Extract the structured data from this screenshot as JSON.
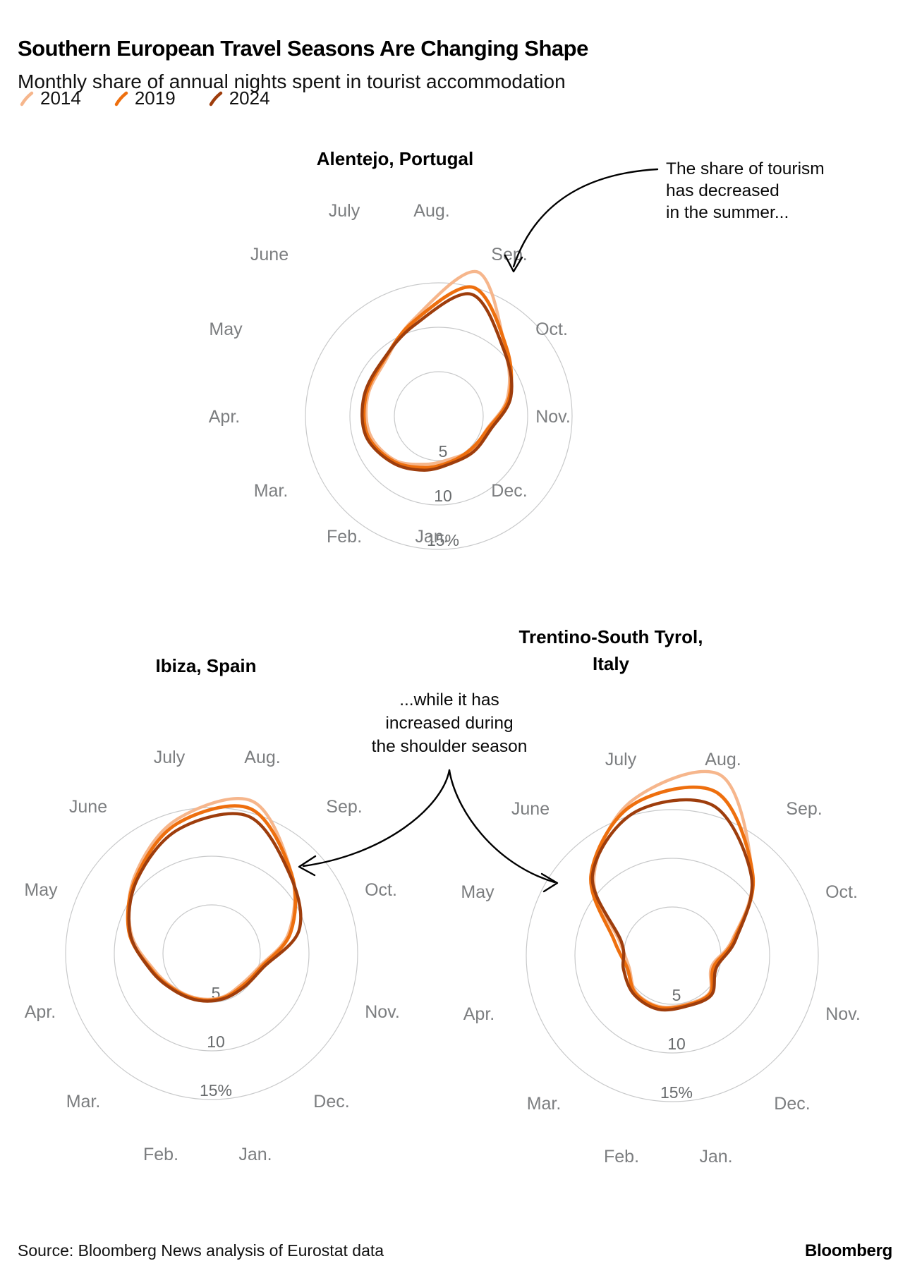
{
  "header": {
    "title": "Southern European Travel Seasons Are Changing Shape",
    "subtitle": "Monthly share of annual nights spent in tourist accommodation"
  },
  "legend": {
    "series": [
      {
        "label": "2014",
        "color": "#F6B68C"
      },
      {
        "label": "2019",
        "color": "#EE6F0E"
      },
      {
        "label": "2024",
        "color": "#9E3D0C"
      }
    ]
  },
  "annotations": {
    "summer": "The share of tourism\nhas decreased\nin the summer...",
    "shoulder": "...while it has\nincreased during\nthe shoulder season"
  },
  "footer": {
    "source": "Source: Bloomberg News analysis of Eurostat data",
    "brand": "Bloomberg"
  },
  "chart_data": [
    {
      "type": "line",
      "polar": true,
      "title": "Alentejo, Portugal",
      "unit": "%",
      "categories": [
        "Jan.",
        "Feb.",
        "Mar.",
        "Apr.",
        "May",
        "June",
        "July",
        "Aug.",
        "Sep.",
        "Oct.",
        "Nov.",
        "Dec."
      ],
      "r_axis_max": 15,
      "r_ticks": [
        5,
        10,
        15
      ],
      "r_tick_labels": [
        "5",
        "10",
        "15%"
      ],
      "series": [
        {
          "name": "2014",
          "color": "#F6B68C",
          "values": [
            5.0,
            5.6,
            7.0,
            8.0,
            8.3,
            8.6,
            11.2,
            16.8,
            10.6,
            8.0,
            5.6,
            5.3
          ]
        },
        {
          "name": "2019",
          "color": "#EE6F0E",
          "values": [
            5.3,
            6.0,
            7.2,
            8.3,
            8.5,
            8.8,
            11.0,
            15.0,
            10.8,
            8.2,
            5.7,
            5.2
          ]
        },
        {
          "name": "2024",
          "color": "#9E3D0C",
          "values": [
            5.5,
            6.3,
            7.4,
            8.5,
            8.7,
            8.9,
            10.6,
            14.2,
            10.4,
            8.4,
            6.0,
            5.6
          ]
        }
      ]
    },
    {
      "type": "line",
      "polar": true,
      "title": "Ibiza, Spain",
      "unit": "%",
      "categories": [
        "Jan.",
        "Feb.",
        "Mar.",
        "Apr.",
        "May",
        "June",
        "July",
        "Aug.",
        "Sep.",
        "Oct.",
        "Nov.",
        "Dec."
      ],
      "r_axis_max": 15,
      "r_ticks": [
        5,
        10,
        15
      ],
      "r_tick_labels": [
        "5",
        "10",
        "15%"
      ],
      "series": [
        {
          "name": "2014",
          "color": "#F6B68C",
          "values": [
            4.6,
            4.8,
            5.2,
            6.2,
            8.6,
            11.2,
            14.2,
            16.2,
            11.6,
            8.2,
            5.1,
            4.4
          ]
        },
        {
          "name": "2019",
          "color": "#EE6F0E",
          "values": [
            4.7,
            4.9,
            5.3,
            6.4,
            8.8,
            11.0,
            13.8,
            15.4,
            11.6,
            8.4,
            5.3,
            4.6
          ]
        },
        {
          "name": "2024",
          "color": "#9E3D0C",
          "values": [
            4.8,
            5.0,
            5.4,
            6.5,
            8.7,
            10.8,
            13.2,
            14.6,
            11.4,
            9.3,
            5.5,
            4.8
          ]
        }
      ]
    },
    {
      "type": "line",
      "polar": true,
      "title": "Trentino-South Tyrol,\nItaly",
      "unit": "%",
      "categories": [
        "Jan.",
        "Feb.",
        "Mar.",
        "Apr.",
        "May",
        "June",
        "July",
        "Aug.",
        "Sep.",
        "Oct.",
        "Nov.",
        "Dec."
      ],
      "r_axis_max": 15,
      "r_ticks": [
        5,
        10,
        15
      ],
      "r_tick_labels": [
        "5",
        "10",
        "15%"
      ],
      "series": [
        {
          "name": "2014",
          "color": "#F6B68C",
          "values": [
            5.2,
            5.4,
            5.3,
            4.6,
            5.6,
            11.4,
            16.4,
            19.2,
            11.6,
            6.4,
            4.2,
            5.4
          ]
        },
        {
          "name": "2019",
          "color": "#EE6F0E",
          "values": [
            5.3,
            5.5,
            5.4,
            4.8,
            6.2,
            11.8,
            16.0,
            17.4,
            11.7,
            6.6,
            4.4,
            5.5
          ]
        },
        {
          "name": "2024",
          "color": "#9E3D0C",
          "values": [
            5.4,
            5.7,
            5.6,
            5.2,
            5.4,
            11.6,
            15.2,
            16.0,
            11.5,
            6.8,
            4.7,
            5.7
          ]
        }
      ]
    }
  ]
}
